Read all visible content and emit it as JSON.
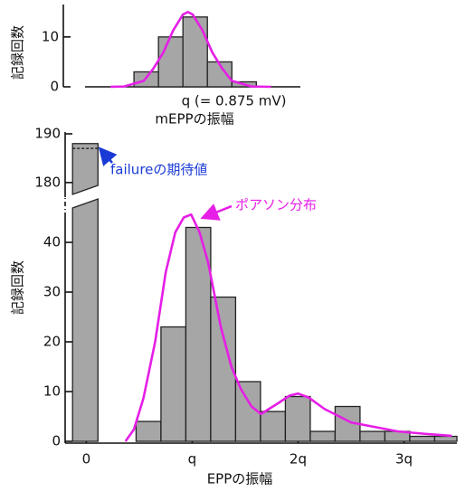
{
  "chart_data": [
    {
      "type": "histogram",
      "ylabel": "記録回数",
      "xlabel": "mEPPの振幅",
      "bins": [
        0.6,
        0.725,
        0.85,
        0.975,
        1.1,
        1.225
      ],
      "values": [
        3,
        10,
        14,
        5,
        1
      ],
      "color": "#a6a6a6",
      "xlim": [
        0.35,
        1.45
      ],
      "xticks": [
        {
          "value": 0.875,
          "label": "q (= 0.875 mV)"
        }
      ],
      "ylim": [
        0,
        16.5
      ],
      "yticks": [
        0,
        10
      ],
      "curve": {
        "color": "#e61ee6",
        "x": [
          0.48,
          0.55,
          0.65,
          0.7,
          0.75,
          0.8,
          0.85,
          0.875,
          0.9,
          0.95,
          1.0,
          1.05,
          1.1,
          1.2,
          1.3
        ],
        "values": [
          0,
          0.07,
          1.2,
          3.7,
          6.9,
          11.3,
          14.5,
          15,
          14.5,
          11.3,
          6.9,
          3.7,
          1.2,
          0.07,
          0
        ]
      }
    },
    {
      "type": "histogram",
      "ylabel": "記録回数",
      "xlabel": "EPPの振幅",
      "bins": [
        0.47,
        0.705,
        0.94,
        1.175,
        1.41,
        1.645,
        1.88,
        2.115,
        2.35,
        2.585,
        2.82,
        3.055,
        3.29,
        3.5
      ],
      "values": [
        4,
        23,
        43,
        29,
        12,
        6,
        9,
        2,
        7,
        2,
        2,
        1,
        1
      ],
      "color": "#a6a6a6",
      "failure": {
        "bins": [
          -0.13,
          0.11
        ],
        "values": [
          188
        ]
      },
      "expected_failure": 187,
      "xlim": [
        -0.2,
        3.5
      ],
      "xticks": [
        0,
        {
          "value": 1,
          "label": "q"
        },
        {
          "value": 2,
          "label": "2q"
        },
        {
          "value": 3,
          "label": "3q"
        }
      ],
      "ylim": [
        0,
        46
      ],
      "yticks": [
        0,
        10,
        20,
        30,
        40
      ],
      "ylim_upper": [
        177,
        190
      ],
      "yticks_upper": [
        180,
        190
      ],
      "annotations": [
        {
          "text": "failureの期待値",
          "color": "#1a3ad6"
        },
        {
          "text": "ポアソン分布",
          "color": "#e61ee6"
        }
      ],
      "curve": {
        "color": "#e61ee6",
        "x": [
          0.37,
          0.45,
          0.54,
          0.65,
          0.75,
          0.84,
          0.92,
          0.99,
          1.07,
          1.15,
          1.27,
          1.37,
          1.46,
          1.56,
          1.65,
          1.8,
          1.92,
          2.0,
          2.1,
          2.25,
          2.5,
          2.94,
          3.2,
          3.45
        ],
        "values": [
          0,
          2.4,
          8.7,
          20,
          34,
          42,
          45,
          45.6,
          42,
          36,
          23,
          15,
          10.5,
          7,
          5.5,
          7.5,
          9.2,
          9.6,
          8.8,
          6.5,
          3.8,
          2,
          1.5,
          1.1
        ]
      }
    }
  ]
}
